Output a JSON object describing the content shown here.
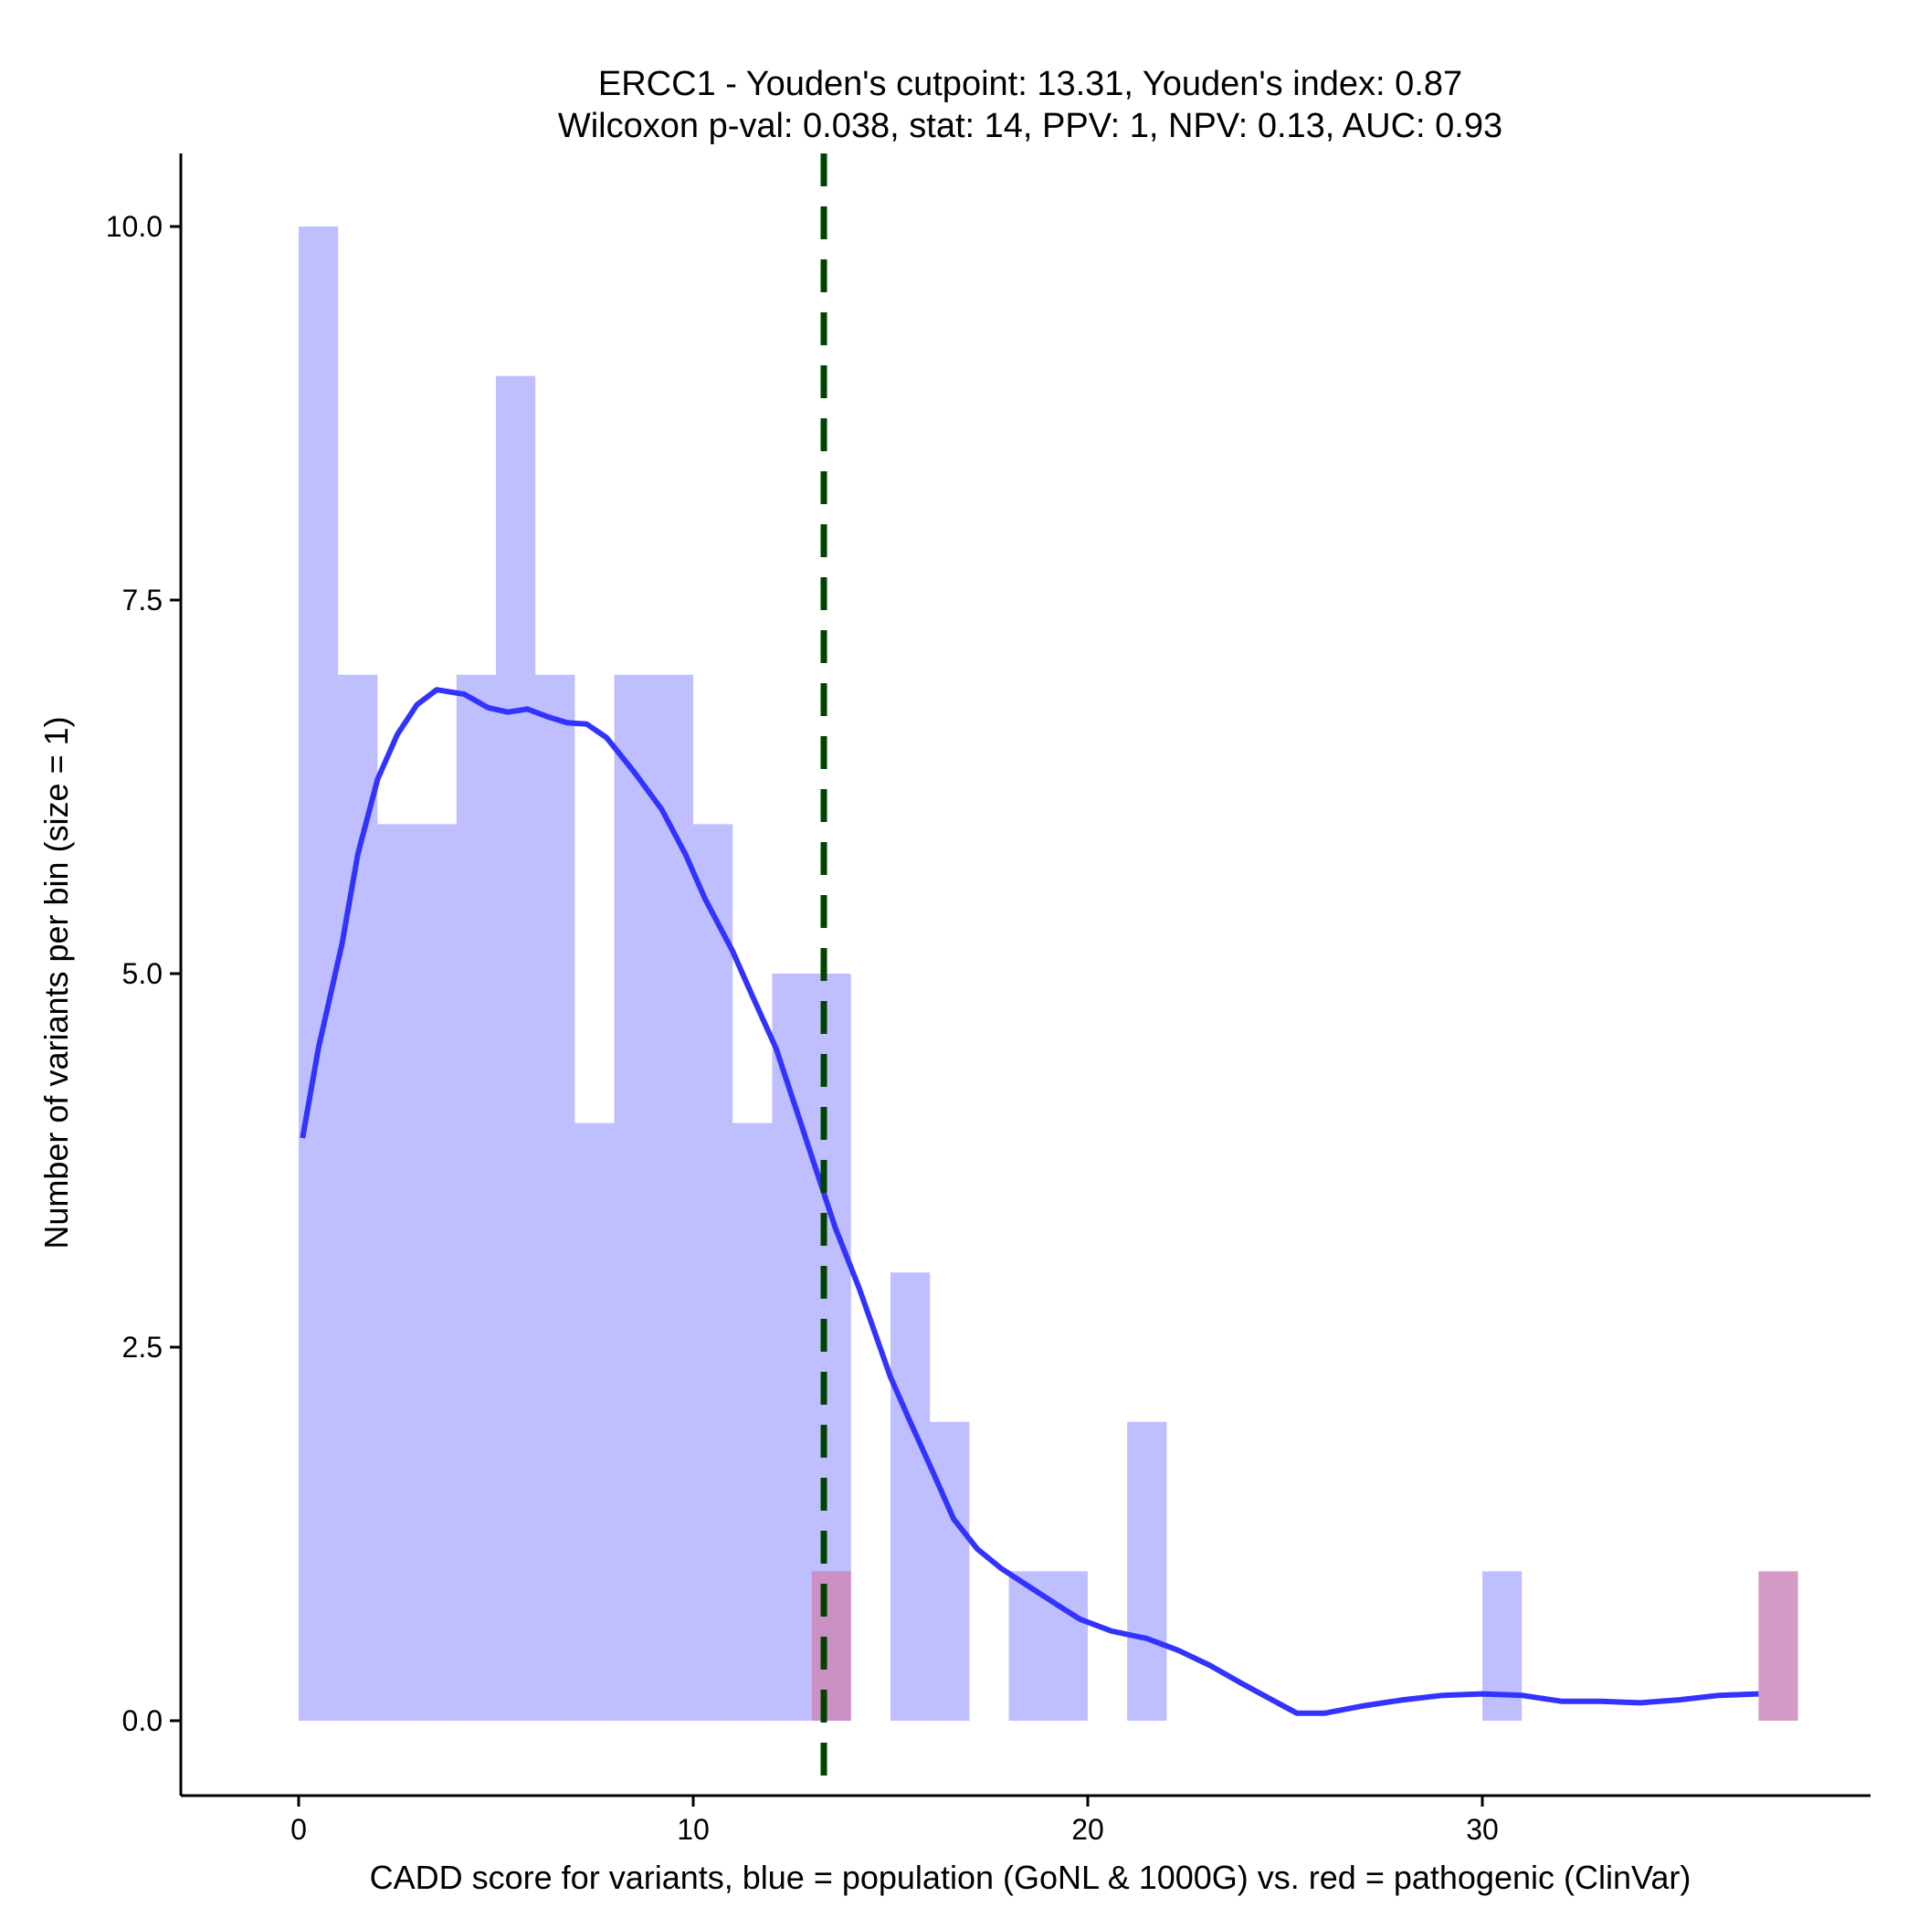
{
  "chart_data": {
    "type": "bar",
    "title": "ERCC1 - Youden's cutpoint: 13.31, Youden's index: 0.87",
    "subtitle": "Wilcoxon p-val: 0.038, stat: 14, PPV: 1, NPV: 0.13, AUC: 0.93",
    "xlabel": "CADD score for variants, blue = population (GoNL & 1000G) vs. red = pathogenic (ClinVar)",
    "ylabel": "Number of variants per bin (size = 1)",
    "xlim": [
      -3,
      40
    ],
    "ylim": [
      -0.5,
      10.5
    ],
    "x_ticks": [
      0,
      10,
      20,
      30
    ],
    "x_tick_labels": [
      "0",
      "10",
      "20",
      "30"
    ],
    "y_ticks": [
      0,
      2.5,
      5,
      7.5,
      10
    ],
    "y_tick_labels": [
      "0.0",
      "2.5",
      "5.0",
      "7.5",
      "10.0"
    ],
    "grid": false,
    "legend": "none",
    "bin_width": 1,
    "series": [
      {
        "color": "#8080ff",
        "opacity": 0.5,
        "bins": [
          {
            "x": 0,
            "count": 10
          },
          {
            "x": 1,
            "count": 7
          },
          {
            "x": 2,
            "count": 6
          },
          {
            "x": 3,
            "count": 6
          },
          {
            "x": 4,
            "count": 7
          },
          {
            "x": 5,
            "count": 9
          },
          {
            "x": 6,
            "count": 7
          },
          {
            "x": 7,
            "count": 4
          },
          {
            "x": 8,
            "count": 7
          },
          {
            "x": 9,
            "count": 7
          },
          {
            "x": 10,
            "count": 6
          },
          {
            "x": 11,
            "count": 4
          },
          {
            "x": 12,
            "count": 5
          },
          {
            "x": 13,
            "count": 5
          },
          {
            "x": 15,
            "count": 3
          },
          {
            "x": 16,
            "count": 2
          },
          {
            "x": 18,
            "count": 1
          },
          {
            "x": 19,
            "count": 1
          },
          {
            "x": 21,
            "count": 2
          },
          {
            "x": 30,
            "count": 1
          }
        ]
      },
      {
        "color": "#cc88bb",
        "opacity": 0.85,
        "bins": [
          {
            "x": 13,
            "count": 1
          },
          {
            "x": 37,
            "count": 1
          }
        ]
      }
    ],
    "density_curve": {
      "color": "#3333ff",
      "points": [
        [
          0.1,
          3.9
        ],
        [
          0.5,
          4.5
        ],
        [
          1.1,
          5.2
        ],
        [
          1.5,
          5.8
        ],
        [
          2.0,
          6.3
        ],
        [
          2.5,
          6.6
        ],
        [
          3.0,
          6.8
        ],
        [
          3.5,
          6.9
        ],
        [
          4.2,
          6.87
        ],
        [
          4.8,
          6.78
        ],
        [
          5.3,
          6.75
        ],
        [
          5.8,
          6.77
        ],
        [
          6.3,
          6.72
        ],
        [
          6.8,
          6.68
        ],
        [
          7.3,
          6.67
        ],
        [
          7.8,
          6.58
        ],
        [
          8.5,
          6.35
        ],
        [
          9.2,
          6.1
        ],
        [
          9.8,
          5.8
        ],
        [
          10.3,
          5.5
        ],
        [
          11.0,
          5.15
        ],
        [
          11.5,
          4.85
        ],
        [
          12.1,
          4.5
        ],
        [
          12.6,
          4.1
        ],
        [
          13.1,
          3.7
        ],
        [
          13.6,
          3.3
        ],
        [
          14.2,
          2.9
        ],
        [
          14.6,
          2.6
        ],
        [
          15.0,
          2.3
        ],
        [
          15.5,
          2.0
        ],
        [
          16.1,
          1.65
        ],
        [
          16.6,
          1.35
        ],
        [
          17.2,
          1.15
        ],
        [
          17.8,
          1.02
        ],
        [
          18.5,
          0.9
        ],
        [
          19.2,
          0.78
        ],
        [
          19.8,
          0.68
        ],
        [
          20.6,
          0.6
        ],
        [
          21.5,
          0.55
        ],
        [
          22.3,
          0.47
        ],
        [
          23.1,
          0.37
        ],
        [
          23.9,
          0.25
        ],
        [
          24.6,
          0.15
        ],
        [
          25.3,
          0.05
        ],
        [
          26.0,
          0.05
        ],
        [
          27.0,
          0.1
        ],
        [
          28.0,
          0.14
        ],
        [
          29.0,
          0.17
        ],
        [
          30.0,
          0.18
        ],
        [
          31.0,
          0.17
        ],
        [
          32.0,
          0.13
        ],
        [
          33.0,
          0.13
        ],
        [
          34.0,
          0.12
        ],
        [
          35.0,
          0.14
        ],
        [
          36.0,
          0.17
        ],
        [
          37.0,
          0.18
        ]
      ]
    },
    "cutpoint_line": {
      "x": 13.31,
      "color": "#004400",
      "style": "dashed"
    }
  }
}
